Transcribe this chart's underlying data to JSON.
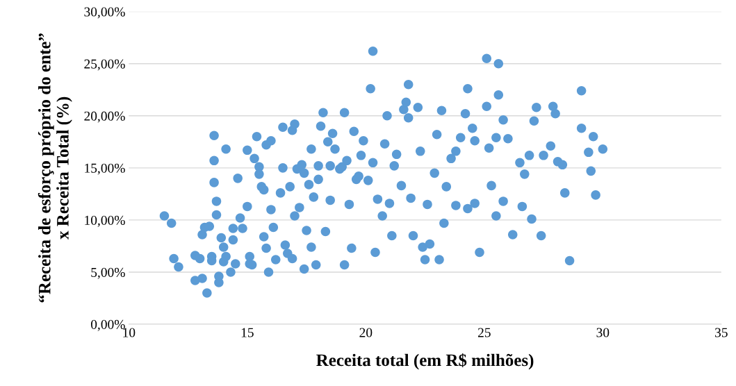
{
  "chart_data": {
    "type": "scatter",
    "xlabel": "Receita total (em R$ milhões)",
    "ylabel": "“Receita de esforço próprio do ente”\nx Receita Total (%)",
    "xlim": [
      10,
      35
    ],
    "xticks": [
      10,
      15,
      20,
      25,
      30,
      35
    ],
    "ylim": [
      0,
      30
    ],
    "yticks": [
      {
        "value": 0,
        "label": "0,00%"
      },
      {
        "value": 5,
        "label": "5,00%"
      },
      {
        "value": 10,
        "label": "10,00%"
      },
      {
        "value": 15,
        "label": "15,00%"
      },
      {
        "value": 20,
        "label": "20,00%"
      },
      {
        "value": 25,
        "label": "25,00%"
      },
      {
        "value": 30,
        "label": "30,00%"
      }
    ],
    "grid": "y",
    "marker": "circle",
    "series": [
      {
        "color": "#5b9bd5",
        "x": [
          11.5,
          11.8,
          11.9,
          12.1,
          12.8,
          12.8,
          13.0,
          13.1,
          13.1,
          13.2,
          13.3,
          13.4,
          13.5,
          13.5,
          13.6,
          13.6,
          13.6,
          13.7,
          13.7,
          13.8,
          13.8,
          13.9,
          14.0,
          14.0,
          14.1,
          14.1,
          14.3,
          14.4,
          14.4,
          14.5,
          14.6,
          14.7,
          14.8,
          15.0,
          15.0,
          15.1,
          15.1,
          15.2,
          15.3,
          15.4,
          15.5,
          15.5,
          15.6,
          15.7,
          15.7,
          15.8,
          15.8,
          15.9,
          16.0,
          16.0,
          16.1,
          16.2,
          16.4,
          16.5,
          16.5,
          16.6,
          16.7,
          16.8,
          16.9,
          16.9,
          17.0,
          17.0,
          17.1,
          17.2,
          17.3,
          17.4,
          17.4,
          17.5,
          17.6,
          17.7,
          17.7,
          17.8,
          17.9,
          18.0,
          18.0,
          18.1,
          18.2,
          18.3,
          18.4,
          18.5,
          18.5,
          18.6,
          18.7,
          18.9,
          19.0,
          19.1,
          19.1,
          19.2,
          19.3,
          19.4,
          19.5,
          19.6,
          19.7,
          19.8,
          19.9,
          20.1,
          20.2,
          20.3,
          20.3,
          20.4,
          20.5,
          20.7,
          20.8,
          20.9,
          21.0,
          21.1,
          21.2,
          21.3,
          21.5,
          21.6,
          21.7,
          21.8,
          21.8,
          21.9,
          22.0,
          22.2,
          22.3,
          22.4,
          22.5,
          22.6,
          22.7,
          22.9,
          23.0,
          23.1,
          23.2,
          23.3,
          23.4,
          23.6,
          23.8,
          23.8,
          24.0,
          24.2,
          24.3,
          24.3,
          24.5,
          24.6,
          24.6,
          24.8,
          25.1,
          25.1,
          25.2,
          25.3,
          25.5,
          25.5,
          25.6,
          25.6,
          25.8,
          25.8,
          26.0,
          26.2,
          26.5,
          26.6,
          26.7,
          26.9,
          27.0,
          27.1,
          27.2,
          27.4,
          27.5,
          27.8,
          27.9,
          28.0,
          28.1,
          28.3,
          28.4,
          28.6,
          29.1,
          29.1,
          29.4,
          29.5,
          29.6,
          29.7,
          30.0
        ],
        "values": [
          10.4,
          9.7,
          6.3,
          5.5,
          4.2,
          6.6,
          6.3,
          4.4,
          8.6,
          9.3,
          3.0,
          9.4,
          6.5,
          6.1,
          13.6,
          15.7,
          18.1,
          11.8,
          10.5,
          4.0,
          4.6,
          8.3,
          7.4,
          6.0,
          16.8,
          6.5,
          5.0,
          9.2,
          8.1,
          5.8,
          14.0,
          10.2,
          9.2,
          16.7,
          11.3,
          5.8,
          6.5,
          5.7,
          15.9,
          18.0,
          15.1,
          14.4,
          13.2,
          12.9,
          8.4,
          17.2,
          7.3,
          5.0,
          17.6,
          11.0,
          9.3,
          6.2,
          12.6,
          18.9,
          15.0,
          7.6,
          6.8,
          13.2,
          18.6,
          6.3,
          19.2,
          10.4,
          14.9,
          11.2,
          15.3,
          14.5,
          5.3,
          9.0,
          13.4,
          16.8,
          7.4,
          12.2,
          5.7,
          15.2,
          13.9,
          19.0,
          20.3,
          8.9,
          17.5,
          15.2,
          11.9,
          18.3,
          16.8,
          14.9,
          15.1,
          20.3,
          5.7,
          15.7,
          11.5,
          7.3,
          18.5,
          13.9,
          14.2,
          16.2,
          17.6,
          13.8,
          22.6,
          26.2,
          15.5,
          6.9,
          12.0,
          10.4,
          17.3,
          20.0,
          11.6,
          8.5,
          15.2,
          16.3,
          13.3,
          20.6,
          21.3,
          23.0,
          19.8,
          12.1,
          8.5,
          20.8,
          16.6,
          7.4,
          6.2,
          11.5,
          7.7,
          14.5,
          18.2,
          6.2,
          20.5,
          9.7,
          13.2,
          15.9,
          16.6,
          11.4,
          17.9,
          20.2,
          22.6,
          11.1,
          18.8,
          17.6,
          11.6,
          6.9,
          25.5,
          20.9,
          16.9,
          13.3,
          17.9,
          10.4,
          25.0,
          22.0,
          19.6,
          11.8,
          17.8,
          8.6,
          15.5,
          11.3,
          14.4,
          16.2,
          10.1,
          19.5,
          20.8,
          8.5,
          16.2,
          17.1,
          20.9,
          20.2,
          15.6,
          15.3,
          12.6,
          6.1,
          22.4,
          18.8,
          16.5,
          14.7,
          18.0,
          12.4,
          16.8
        ]
      }
    ]
  }
}
